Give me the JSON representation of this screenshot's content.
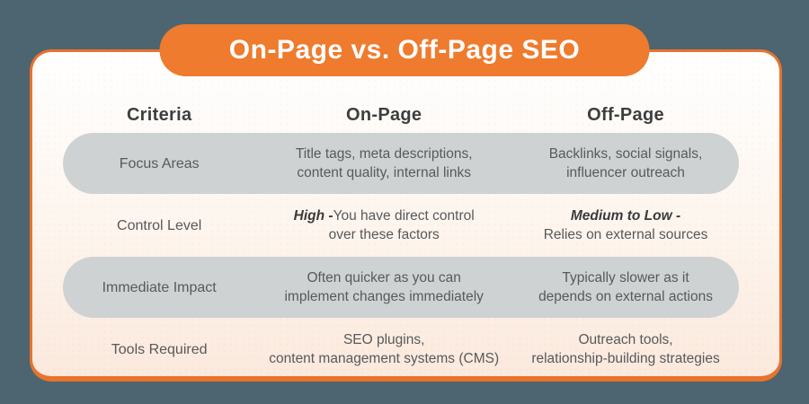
{
  "title": "On-Page vs. Off-Page SEO",
  "colors": {
    "background": "#4C6570",
    "accent_orange": "#EE7B2E",
    "card_border": "#E8732C",
    "card_gradient_top": "#FFFFFF",
    "card_gradient_bottom": "#FBE9DD",
    "row_pill": "#CFD2D3",
    "heading_text": "#3E3E3E",
    "body_text": "#58595B"
  },
  "table": {
    "headers": [
      "Criteria",
      "On-Page",
      "Off-Page"
    ],
    "rows": [
      {
        "criteria": "Focus Areas",
        "on_page": {
          "line1": "Title tags, meta descriptions,",
          "line2": "content quality, internal links"
        },
        "off_page": {
          "line1": "Backlinks, social signals,",
          "line2": "influencer outreach"
        }
      },
      {
        "criteria": "Control Level",
        "on_page": {
          "bold": "High -",
          "line1": "You have direct control",
          "line2": "over these factors"
        },
        "off_page": {
          "bold": "Medium to Low -",
          "line2": "Relies on external sources"
        }
      },
      {
        "criteria": "Immediate Impact",
        "on_page": {
          "line1": "Often quicker as you can",
          "line2": "implement changes immediately"
        },
        "off_page": {
          "line1": "Typically slower as it",
          "line2": "depends on external actions"
        }
      },
      {
        "criteria": "Tools Required",
        "on_page": {
          "line1": "SEO plugins,",
          "line2": "content management systems (CMS)"
        },
        "off_page": {
          "line1": "Outreach tools,",
          "line2": "relationship-building strategies"
        }
      }
    ]
  }
}
